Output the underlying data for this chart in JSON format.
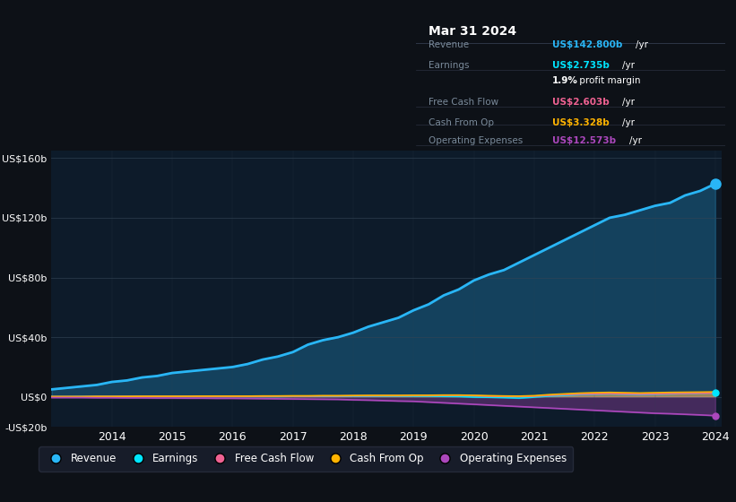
{
  "background_color": "#0d1117",
  "plot_bg_color": "#0d1b2a",
  "title": "Mar 31 2024",
  "ylabel_top": "US$160b",
  "ylabel_zero": "US$0",
  "ylabel_neg": "-US$20b",
  "x_labels": [
    "2014",
    "2015",
    "2016",
    "2017",
    "2018",
    "2019",
    "2020",
    "2021",
    "2022",
    "2023",
    "2024"
  ],
  "colors": {
    "Revenue": "#29b6f6",
    "Earnings": "#00e5ff",
    "FreeCashFlow": "#f06292",
    "CashFromOp": "#ffb300",
    "OperatingExpenses": "#ab47bc"
  },
  "legend": [
    "Revenue",
    "Earnings",
    "Free Cash Flow",
    "Cash From Op",
    "Operating Expenses"
  ],
  "legend_colors": [
    "#29b6f6",
    "#00e5ff",
    "#f06292",
    "#ffb300",
    "#ab47bc"
  ],
  "tooltip": {
    "title": "Mar 31 2024",
    "Revenue": "US$142.800b /yr",
    "Earnings": "US$2.735b /yr",
    "profit_margin": "1.9% profit margin",
    "FreeCashFlow": "US$2.603b /yr",
    "CashFromOp": "US$3.328b /yr",
    "OperatingExpenses": "US$12.573b /yr"
  },
  "revenue_data": {
    "years": [
      2013.0,
      2013.25,
      2013.5,
      2013.75,
      2014.0,
      2014.25,
      2014.5,
      2014.75,
      2015.0,
      2015.25,
      2015.5,
      2015.75,
      2016.0,
      2016.25,
      2016.5,
      2016.75,
      2017.0,
      2017.25,
      2017.5,
      2017.75,
      2018.0,
      2018.25,
      2018.5,
      2018.75,
      2019.0,
      2019.25,
      2019.5,
      2019.75,
      2020.0,
      2020.25,
      2020.5,
      2020.75,
      2021.0,
      2021.25,
      2021.5,
      2021.75,
      2022.0,
      2022.25,
      2022.5,
      2022.75,
      2023.0,
      2023.25,
      2023.5,
      2023.75,
      2024.0
    ],
    "Revenue": [
      5,
      6,
      7,
      8,
      10,
      11,
      13,
      14,
      16,
      17,
      18,
      19,
      20,
      22,
      25,
      27,
      30,
      35,
      38,
      40,
      43,
      47,
      50,
      53,
      58,
      62,
      68,
      72,
      78,
      82,
      85,
      90,
      95,
      100,
      105,
      110,
      115,
      120,
      122,
      125,
      128,
      130,
      135,
      138,
      142.8
    ],
    "Earnings": [
      0.1,
      0.1,
      0.2,
      0.2,
      0.2,
      0.2,
      0.2,
      0.2,
      0.2,
      0.2,
      0.2,
      0.2,
      0.2,
      0.2,
      0.2,
      0.2,
      0.3,
      0.3,
      0.3,
      0.3,
      0.4,
      0.4,
      0.5,
      0.5,
      0.5,
      0.5,
      0.3,
      0.2,
      -0.2,
      -0.3,
      -0.5,
      -0.8,
      -0.2,
      0.5,
      1.0,
      1.5,
      1.8,
      2.0,
      1.8,
      1.5,
      1.8,
      2.0,
      2.2,
      2.5,
      2.735
    ],
    "FreeCashFlow": [
      0.1,
      0.1,
      0.1,
      0.2,
      0.2,
      0.3,
      0.3,
      0.3,
      0.3,
      0.3,
      0.3,
      0.3,
      0.3,
      0.4,
      0.4,
      0.5,
      0.5,
      0.5,
      0.6,
      0.6,
      0.7,
      0.7,
      0.8,
      0.8,
      0.9,
      1.0,
      1.0,
      1.0,
      0.8,
      0.5,
      0.3,
      0.2,
      0.5,
      1.0,
      1.5,
      1.8,
      2.0,
      2.2,
      2.0,
      1.8,
      2.0,
      2.2,
      2.3,
      2.5,
      2.603
    ],
    "CashFromOp": [
      0.2,
      0.2,
      0.2,
      0.3,
      0.3,
      0.3,
      0.4,
      0.4,
      0.4,
      0.4,
      0.5,
      0.5,
      0.5,
      0.5,
      0.6,
      0.6,
      0.7,
      0.7,
      0.8,
      0.8,
      0.9,
      1.0,
      1.0,
      1.0,
      1.1,
      1.1,
      1.2,
      1.2,
      1.0,
      0.8,
      0.6,
      0.5,
      0.8,
      1.5,
      2.0,
      2.5,
      2.8,
      3.0,
      2.8,
      2.6,
      2.8,
      3.0,
      3.1,
      3.2,
      3.328
    ],
    "OperatingExpenses": [
      -0.5,
      -0.5,
      -0.5,
      -0.6,
      -0.6,
      -0.7,
      -0.7,
      -0.8,
      -0.8,
      -0.9,
      -0.9,
      -1.0,
      -1.0,
      -1.1,
      -1.2,
      -1.3,
      -1.4,
      -1.5,
      -1.6,
      -1.7,
      -2.0,
      -2.2,
      -2.5,
      -2.8,
      -3.0,
      -3.5,
      -4.0,
      -4.5,
      -5.0,
      -5.5,
      -6.0,
      -6.5,
      -7.0,
      -7.5,
      -8.0,
      -8.5,
      -9.0,
      -9.5,
      -10.0,
      -10.5,
      -11.0,
      -11.3,
      -11.7,
      -12.1,
      -12.573
    ]
  },
  "ylim": [
    -20,
    165
  ],
  "yticks": [
    -20,
    0,
    40,
    80,
    120,
    160
  ],
  "ytick_labels": [
    "-US$20b",
    "US$0",
    "US$40b",
    "US$80b",
    "US$120b",
    "US$160b"
  ]
}
